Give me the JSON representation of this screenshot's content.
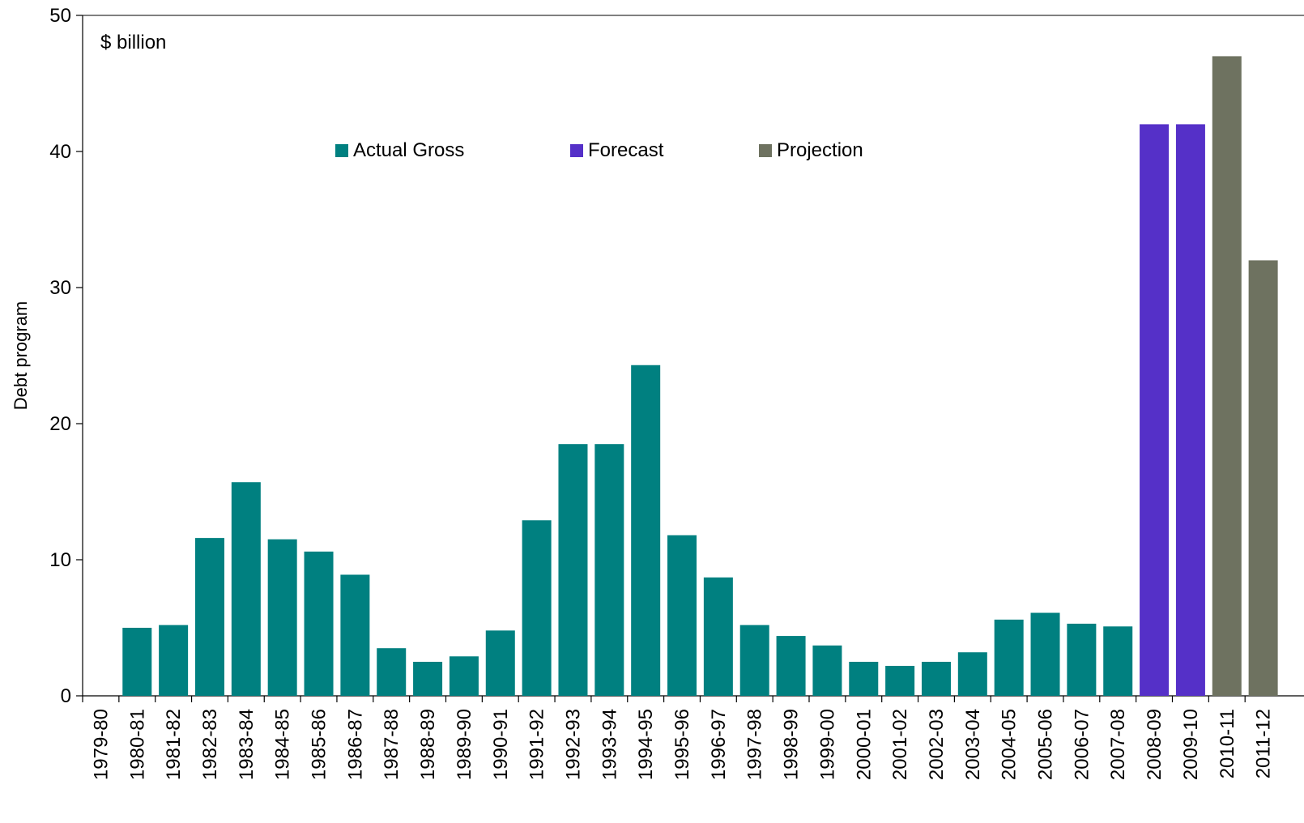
{
  "chart_data": {
    "type": "bar",
    "title": "",
    "unit_label": "$ billion",
    "ylabel": "Debt program",
    "xlabel": "",
    "ylim": [
      0,
      50
    ],
    "yticks": [
      0,
      10,
      20,
      30,
      40,
      50
    ],
    "grid": false,
    "legend_position": "top-center",
    "categories": [
      "1979-80",
      "1980-81",
      "1981-82",
      "1982-83",
      "1983-84",
      "1984-85",
      "1985-86",
      "1986-87",
      "1987-88",
      "1988-89",
      "1989-90",
      "1990-91",
      "1991-92",
      "1992-93",
      "1993-94",
      "1994-95",
      "1995-96",
      "1996-97",
      "1997-98",
      "1998-99",
      "1999-00",
      "2000-01",
      "2001-02",
      "2002-03",
      "2003-04",
      "2004-05",
      "2005-06",
      "2006-07",
      "2007-08",
      "2008-09",
      "2009-10",
      "2010-11",
      "2011-12"
    ],
    "series": [
      {
        "name": "Actual Gross",
        "color": "#008080",
        "values": [
          0,
          5.0,
          5.2,
          11.6,
          15.7,
          11.5,
          10.6,
          8.9,
          3.5,
          2.5,
          2.9,
          4.8,
          12.9,
          18.5,
          18.5,
          24.3,
          11.8,
          8.7,
          5.2,
          4.4,
          3.7,
          2.5,
          2.2,
          2.5,
          3.2,
          5.6,
          6.1,
          5.3,
          5.1,
          null,
          null,
          null,
          null
        ]
      },
      {
        "name": "Forecast",
        "color": "#5530C8",
        "values": [
          null,
          null,
          null,
          null,
          null,
          null,
          null,
          null,
          null,
          null,
          null,
          null,
          null,
          null,
          null,
          null,
          null,
          null,
          null,
          null,
          null,
          null,
          null,
          null,
          null,
          null,
          null,
          null,
          null,
          42.0,
          42.0,
          null,
          null
        ]
      },
      {
        "name": "Projection",
        "color": "#6E7260",
        "values": [
          null,
          null,
          null,
          null,
          null,
          null,
          null,
          null,
          null,
          null,
          null,
          null,
          null,
          null,
          null,
          null,
          null,
          null,
          null,
          null,
          null,
          null,
          null,
          null,
          null,
          null,
          null,
          null,
          null,
          null,
          null,
          47.0,
          32.0
        ]
      }
    ]
  }
}
